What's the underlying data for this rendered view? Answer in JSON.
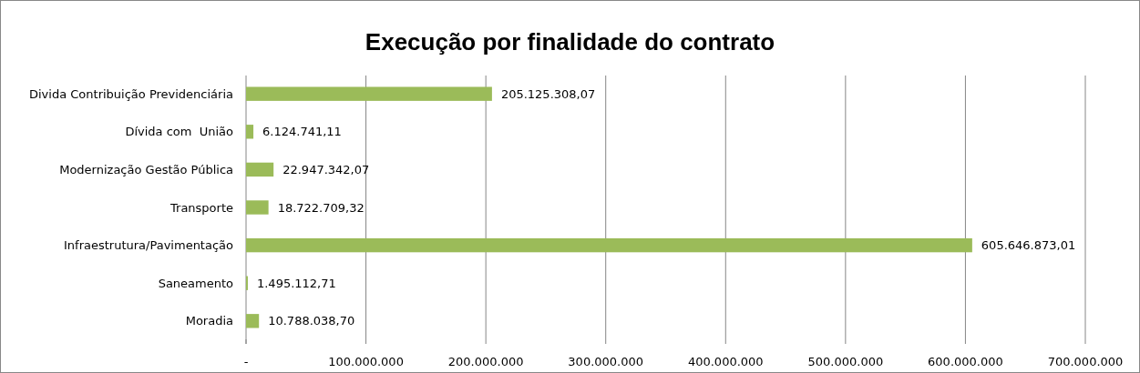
{
  "chart_data": {
    "type": "bar",
    "orientation": "horizontal",
    "title": "Execução por finalidade do contrato",
    "categories": [
      "Divida Contribuição Previdenciária",
      "Dívida com  União",
      "Modernização Gestão Pública",
      "Transporte",
      "Infraestrutura/Pavimentação",
      "Saneamento",
      "Moradia"
    ],
    "values": [
      205125308.07,
      6124741.11,
      22947342.07,
      18722709.32,
      605646873.01,
      1495112.71,
      10788038.7
    ],
    "value_labels": [
      "205.125.308,07",
      "6.124.741,11",
      "22.947.342,07",
      "18.722.709,32",
      "605.646.873,01",
      "1.495.112,71",
      "10.788.038,70"
    ],
    "color": "#9bbb59",
    "xlim": [
      0,
      700000000
    ],
    "xticks": [
      {
        "value": 0,
        "label": "-"
      },
      {
        "value": 100000000,
        "label": "100.000.000"
      },
      {
        "value": 200000000,
        "label": "200.000.000"
      },
      {
        "value": 300000000,
        "label": "300.000.000"
      },
      {
        "value": 400000000,
        "label": "400.000.000"
      },
      {
        "value": 500000000,
        "label": "500.000.000"
      },
      {
        "value": 600000000,
        "label": "600.000.000"
      },
      {
        "value": 700000000,
        "label": "700.000.000"
      }
    ],
    "grid": "x"
  }
}
